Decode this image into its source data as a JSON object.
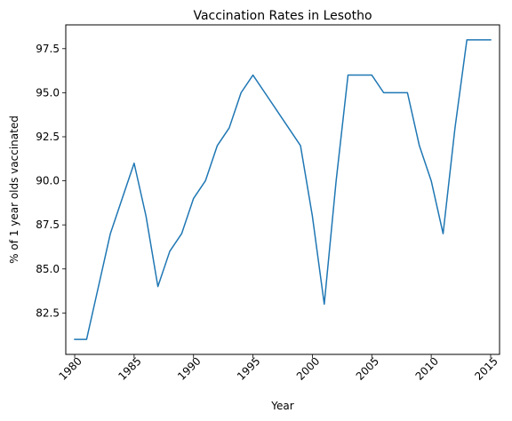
{
  "chart_data": {
    "type": "line",
    "title": "Vaccination Rates in Lesotho",
    "xlabel": "Year",
    "ylabel": "% of 1 year olds vaccinated",
    "xlim": [
      1979.25,
      2015.75
    ],
    "ylim": [
      80.15,
      98.85
    ],
    "xticks": [
      1980,
      1985,
      1990,
      1995,
      2000,
      2005,
      2010,
      2015
    ],
    "yticks": [
      82.5,
      85.0,
      87.5,
      90.0,
      92.5,
      95.0,
      97.5
    ],
    "ytick_labels": [
      "82.5",
      "85.0",
      "87.5",
      "90.0",
      "92.5",
      "95.0",
      "97.5"
    ],
    "xtick_rotation": 45,
    "grid": false,
    "line_color": "#1f77b4",
    "series": [
      {
        "x": [
          1980,
          1981,
          1982,
          1983,
          1984,
          1985,
          1986,
          1987,
          1988,
          1989,
          1990,
          1991,
          1992,
          1993,
          1994,
          1995,
          1996,
          1997,
          1998,
          1999,
          2000,
          2001,
          2002,
          2003,
          2004,
          2005,
          2006,
          2007,
          2008,
          2009,
          2010,
          2011,
          2012,
          2013,
          2014,
          2015
        ],
        "values": [
          81,
          81,
          84,
          87,
          89,
          91,
          88,
          84,
          86,
          87,
          89,
          90,
          92,
          93,
          95,
          96,
          95,
          94,
          93,
          92,
          88,
          83,
          90,
          96,
          96,
          96,
          95,
          95,
          95,
          92,
          90,
          87,
          93,
          98,
          98,
          98
        ]
      }
    ]
  }
}
